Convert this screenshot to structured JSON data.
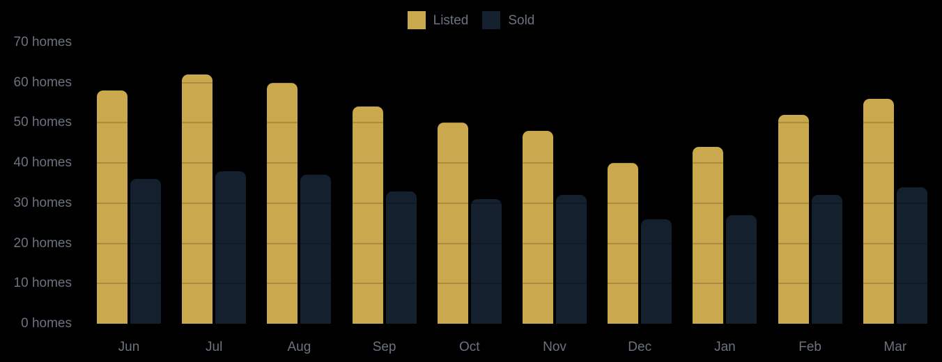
{
  "colors": {
    "background": "#000000",
    "axis_text": "#6B7280",
    "grid_overlay": "rgba(0,0,0,0.16)"
  },
  "chart_data": {
    "type": "bar",
    "title": "",
    "xlabel": "",
    "ylabel": "",
    "categories": [
      "Jun",
      "Jul",
      "Aug",
      "Sep",
      "Oct",
      "Nov",
      "Dec",
      "Jan",
      "Feb",
      "Mar"
    ],
    "series": [
      {
        "name": "Listed",
        "color": "#C9A84E",
        "values": [
          58,
          62,
          60,
          54,
          50,
          48,
          40,
          44,
          52,
          56
        ]
      },
      {
        "name": "Sold",
        "color": "#14202E",
        "values": [
          36,
          38,
          37,
          33,
          31,
          32,
          26,
          27,
          32,
          34
        ]
      }
    ],
    "ylim": [
      0,
      70
    ],
    "yticks": [
      {
        "value": 0,
        "label": "0 homes"
      },
      {
        "value": 10,
        "label": "10 homes"
      },
      {
        "value": 20,
        "label": "20 homes"
      },
      {
        "value": 30,
        "label": "30 homes"
      },
      {
        "value": 40,
        "label": "40 homes"
      },
      {
        "value": 50,
        "label": "50 homes"
      },
      {
        "value": 60,
        "label": "60 homes"
      },
      {
        "value": 70,
        "label": "70 homes"
      }
    ],
    "legend_entries": [
      "Listed",
      "Sold"
    ],
    "legend_position": "top-center",
    "grid": "horizontal-overlay"
  }
}
